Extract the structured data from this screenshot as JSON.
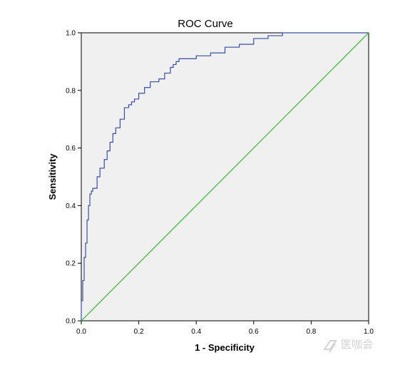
{
  "chart_data": {
    "type": "line",
    "title": "ROC Curve",
    "xlabel": "1 - Specificity",
    "ylabel": "Sensitivity",
    "xlim": [
      0,
      1
    ],
    "ylim": [
      0,
      1
    ],
    "xticks": [
      "0.0",
      "0.2",
      "0.4",
      "0.6",
      "0.8",
      "1.0"
    ],
    "yticks": [
      "0.0",
      "0.2",
      "0.4",
      "0.6",
      "0.8",
      "1.0"
    ],
    "grid": false,
    "legend": "none",
    "plot_background": "#f0f0f0",
    "series": [
      {
        "color": "#3b4da3",
        "x": [
          0.0,
          0.0,
          0.005,
          0.005,
          0.01,
          0.01,
          0.015,
          0.015,
          0.02,
          0.02,
          0.025,
          0.025,
          0.03,
          0.03,
          0.035,
          0.035,
          0.04,
          0.04,
          0.055,
          0.055,
          0.065,
          0.065,
          0.08,
          0.08,
          0.09,
          0.09,
          0.1,
          0.1,
          0.11,
          0.11,
          0.12,
          0.12,
          0.135,
          0.135,
          0.15,
          0.15,
          0.165,
          0.165,
          0.175,
          0.175,
          0.185,
          0.185,
          0.2,
          0.2,
          0.22,
          0.22,
          0.24,
          0.24,
          0.27,
          0.27,
          0.29,
          0.29,
          0.31,
          0.31,
          0.32,
          0.32,
          0.33,
          0.33,
          0.34,
          0.34,
          0.4,
          0.4,
          0.45,
          0.45,
          0.5,
          0.5,
          0.55,
          0.55,
          0.6,
          0.6,
          0.65,
          0.65,
          0.7,
          0.7,
          0.8,
          0.8,
          1.0
        ],
        "y": [
          0.0,
          0.07,
          0.07,
          0.14,
          0.14,
          0.22,
          0.22,
          0.27,
          0.27,
          0.35,
          0.35,
          0.4,
          0.4,
          0.44,
          0.44,
          0.45,
          0.45,
          0.46,
          0.46,
          0.5,
          0.5,
          0.53,
          0.53,
          0.56,
          0.56,
          0.59,
          0.59,
          0.62,
          0.62,
          0.65,
          0.65,
          0.67,
          0.67,
          0.7,
          0.7,
          0.74,
          0.74,
          0.75,
          0.75,
          0.76,
          0.76,
          0.77,
          0.77,
          0.79,
          0.79,
          0.81,
          0.81,
          0.83,
          0.83,
          0.84,
          0.84,
          0.86,
          0.86,
          0.88,
          0.88,
          0.89,
          0.89,
          0.9,
          0.9,
          0.91,
          0.91,
          0.92,
          0.92,
          0.93,
          0.93,
          0.95,
          0.95,
          0.96,
          0.96,
          0.98,
          0.98,
          0.99,
          0.99,
          1.0,
          1.0,
          1.0,
          1.0
        ]
      },
      {
        "color": "#3cb33c",
        "x": [
          0,
          1
        ],
        "y": [
          0,
          1
        ]
      }
    ]
  },
  "watermark_text": "医咖会"
}
